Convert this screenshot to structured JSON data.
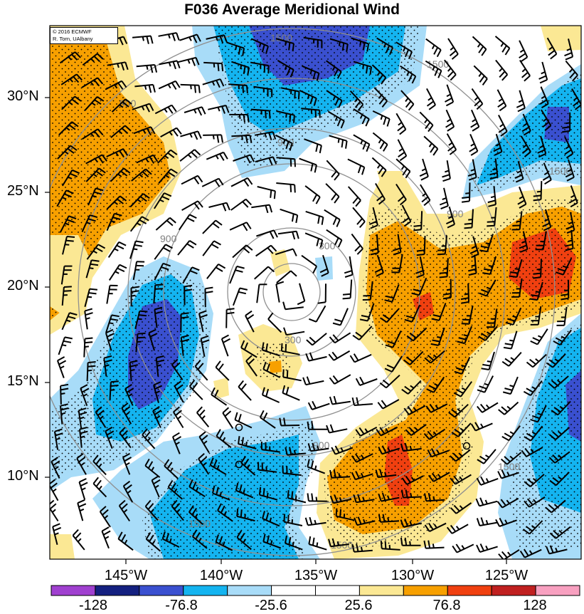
{
  "title": "F036 Average Meridional Wind",
  "credit": {
    "line1": "© 2016 ECMWF",
    "line2": "R. Torn, UAlbany"
  },
  "lat_labels": [
    "30°N",
    "25°N",
    "20°N",
    "15°N",
    "10°N"
  ],
  "lon_labels": [
    "145°W",
    "140°W",
    "135°W",
    "130°W",
    "125°W"
  ],
  "colorbar": {
    "labels": [
      "-128",
      "-76.8",
      "-25.6",
      "25.6",
      "76.8",
      "128"
    ],
    "colors": [
      "#a040d0",
      "#142080",
      "#3a50d0",
      "#14b4f0",
      "#a8dcf8",
      "#ffffff",
      "#ffffff",
      "#fbe894",
      "#f7a000",
      "#f04010",
      "#c02020",
      "#f8a0c0"
    ]
  },
  "range_ring_labels": [
    "300",
    "300",
    "900",
    "900",
    "900",
    "900",
    "900",
    "1500",
    "1500",
    "1500",
    "1500",
    "1500",
    "1500"
  ],
  "colors": {
    "strong_negative": "#3a50d0",
    "moderate_negative": "#14b4f0",
    "weak_negative": "#a8dcf8",
    "weak_positive": "#fbe894",
    "moderate_positive": "#f7a000",
    "strong_positive": "#f04010",
    "ring": "#909090"
  }
}
